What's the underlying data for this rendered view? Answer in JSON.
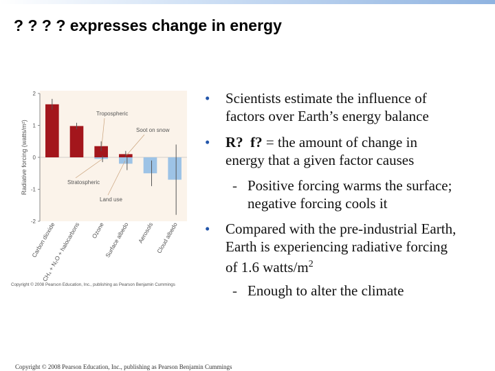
{
  "title": "? ? ? ? expresses change in energy",
  "bullets": [
    {
      "level": 1,
      "lines": [
        "Scientists estimate the influence of",
        "factors over Earth’s energy balance"
      ]
    },
    {
      "level": 1,
      "bold": "R?  f?",
      "lines": [
        " = the amount of change in",
        "energy that a given factor causes"
      ]
    },
    {
      "level": 2,
      "lines": [
        "Positive forcing warms the surface;",
        "negative forcing cools it"
      ]
    },
    {
      "level": 1,
      "lines": [
        "Compared with the pre-industrial Earth,",
        "Earth is experiencing radiative forcing",
        "of 1.6 watts/m"
      ],
      "sup": "2"
    },
    {
      "level": 2,
      "lines": [
        "Enough to alter the climate"
      ]
    }
  ],
  "footer": "Copyright © 2008 Pearson Education, Inc., publishing as Pearson Benjamin Cummings",
  "chart_data": {
    "type": "bar",
    "ylabel": "Radiative forcing (watts/m²)",
    "categories": [
      "Carbon dioxide",
      "CH₄ + N₂O + halocarbons",
      "Ozone",
      "Surface albedo",
      "Aerosols",
      "Cloud albedo"
    ],
    "series": [
      {
        "color": "#a3161c",
        "values": [
          1.66,
          0.98,
          0.35,
          0.1,
          null,
          null
        ],
        "errors": [
          0.17,
          0.1,
          0.15,
          0.1,
          null,
          null
        ]
      },
      {
        "color": "#9dc3e6",
        "values": [
          null,
          null,
          -0.05,
          -0.2,
          -0.5,
          -0.7
        ],
        "errors": [
          null,
          null,
          0.1,
          0.2,
          0.4,
          1.1
        ]
      }
    ],
    "annotations": [
      "Tropospheric",
      "Soot on snow",
      "Stratospheric",
      "Land use"
    ],
    "ylim": [
      -2,
      2
    ],
    "yticks": [
      -2,
      -1,
      0,
      1,
      2
    ],
    "copyright": "Copyright © 2008 Pearson Education, Inc., publishing as Pearson Benjamin Cummings"
  }
}
